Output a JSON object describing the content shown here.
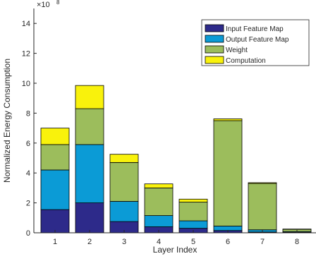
{
  "chart_data": {
    "type": "bar",
    "stacked": true,
    "title": "",
    "xlabel": "Layer Index",
    "ylabel": "Normalized Energy Consumption",
    "y_exponent_base": "×10",
    "y_exponent_power": "8",
    "ylim": [
      0,
      15
    ],
    "yticks": [
      0,
      2,
      4,
      6,
      8,
      10,
      12,
      14
    ],
    "categories": [
      "1",
      "2",
      "3",
      "4",
      "5",
      "6",
      "7",
      "8"
    ],
    "legend_position": "top-right",
    "grid": false,
    "series": [
      {
        "name": "Input Feature Map",
        "color": "#2d2a8a",
        "values": [
          1.55,
          2.0,
          0.75,
          0.4,
          0.3,
          0.15,
          0.05,
          0.03
        ]
      },
      {
        "name": "Output Feature Map",
        "color": "#0b9bd6",
        "values": [
          2.65,
          3.9,
          1.35,
          0.75,
          0.5,
          0.3,
          0.15,
          0.05
        ]
      },
      {
        "name": "Weight",
        "color": "#9cbd5c",
        "values": [
          1.7,
          2.4,
          2.6,
          1.85,
          1.25,
          7.05,
          3.1,
          0.15
        ]
      },
      {
        "name": "Computation",
        "color": "#f9f20c",
        "values": [
          1.1,
          1.55,
          0.55,
          0.27,
          0.2,
          0.12,
          0.05,
          0.02
        ]
      }
    ]
  }
}
